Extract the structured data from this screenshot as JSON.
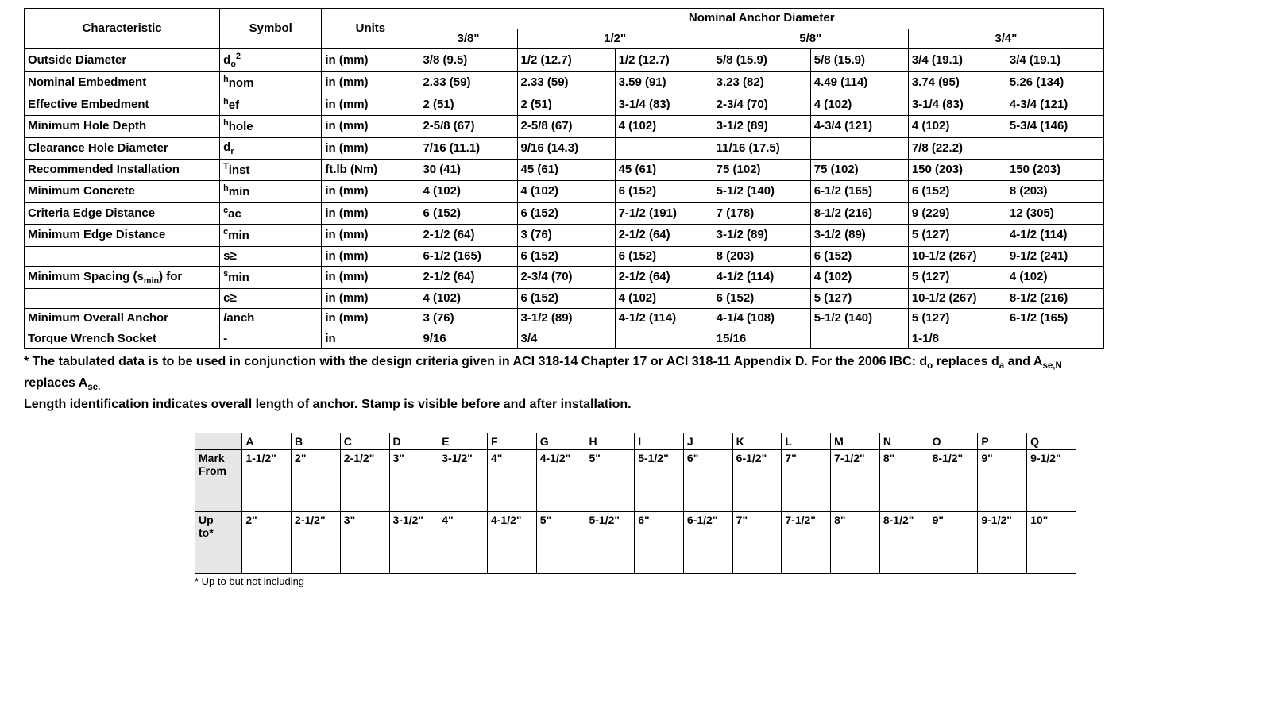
{
  "mainTable": {
    "header": {
      "characteristic": "Characteristic",
      "symbol": "Symbol",
      "units": "Units",
      "group": "Nominal Anchor Diameter",
      "d38": "3/8\"",
      "d12": "1/2\"",
      "d58": "5/8\"",
      "d34": "3/4\""
    },
    "rows": [
      {
        "char": "Outside Diameter",
        "sym": "d<sub>o</sub><sup>2</sup>",
        "units": "in (mm)",
        "v": [
          "3/8 (9.5)",
          "1/2 (12.7)",
          "1/2 (12.7)",
          "5/8 (15.9)",
          "5/8 (15.9)",
          "3/4 (19.1)",
          "3/4 (19.1)"
        ]
      },
      {
        "char": "Nominal Embedment",
        "sym": "<sup>h</sup>nom",
        "units": "in (mm)",
        "v": [
          "2.33 (59)",
          "2.33 (59)",
          "3.59 (91)",
          "3.23 (82)",
          "4.49 (114)",
          "3.74 (95)",
          "5.26 (134)"
        ]
      },
      {
        "char": "Effective Embedment",
        "sym": "<sup>h</sup>ef",
        "units": "in (mm)",
        "v": [
          "2 (51)",
          "2 (51)",
          "3-1/4 (83)",
          "2-3/4 (70)",
          "4 (102)",
          "3-1/4 (83)",
          "4-3/4 (121)"
        ]
      },
      {
        "char": "Minimum Hole Depth",
        "sym": "<sup>h</sup>hole",
        "units": "in (mm)",
        "v": [
          "2-5/8 (67)",
          "2-5/8 (67)",
          "4 (102)",
          "3-1/2 (89)",
          "4-3/4 (121)",
          "4 (102)",
          "5-3/4 (146)"
        ]
      },
      {
        "char": "Clearance Hole Diameter",
        "sym": "d<sub>r</sub>",
        "units": "in (mm)",
        "v": [
          "7/16 (11.1)",
          "9/16 (14.3)",
          "",
          "11/16 (17.5)",
          "",
          "7/8 (22.2)",
          ""
        ]
      },
      {
        "char": "Recommended Installation",
        "sym": "<sup>T</sup>inst",
        "units": "ft.lb (Nm)",
        "v": [
          "30 (41)",
          "45 (61)",
          "45 (61)",
          "75 (102)",
          "75 (102)",
          "150 (203)",
          "150 (203)"
        ]
      },
      {
        "char": "Minimum Concrete",
        "sym": "<sup>h</sup>min",
        "units": "in (mm)",
        "v": [
          "4 (102)",
          "4 (102)",
          "6 (152)",
          "5-1/2 (140)",
          "6-1/2 (165)",
          "6 (152)",
          "8 (203)"
        ]
      },
      {
        "char": "Criteria Edge Distance",
        "sym": "<sup>c</sup>ac",
        "units": "in (mm)",
        "v": [
          "6 (152)",
          "6 (152)",
          "7-1/2 (191)",
          "7 (178)",
          "8-1/2 (216)",
          "9  (229)",
          "12 (305)"
        ]
      },
      {
        "char": "Minimum Edge Distance",
        "sym": "<sup>c</sup>min",
        "units": "in (mm)",
        "v": [
          "2-1/2 (64)",
          "3 (76)",
          "2-1/2 (64)",
          "3-1/2 (89)",
          "3-1/2 (89)",
          "5 (127)",
          "4-1/2 (114)"
        ]
      },
      {
        "char": "",
        "sym": "s≥",
        "units": "in (mm)",
        "v": [
          "6-1/2 (165)",
          "6 (152)",
          "6 (152)",
          "8 (203)",
          "6 (152)",
          "10-1/2 (267)",
          "9-1/2 (241)"
        ]
      },
      {
        "char": "Minimum Spacing (s<sub>min</sub>) for",
        "sym": "<sup>s</sup>min",
        "units": "in (mm)",
        "v": [
          "2-1/2 (64)",
          "2-3/4 (70)",
          "2-1/2 (64)",
          "4-1/2 (114)",
          "4 (102)",
          "5 (127)",
          "4 (102)"
        ]
      },
      {
        "char": "",
        "sym": "c≥",
        "units": "in (mm)",
        "v": [
          "4 (102)",
          "6 (152)",
          "4 (102)",
          "6 (152)",
          "5 (127)",
          "10-1/2 (267)",
          "8-1/2 (216)"
        ]
      },
      {
        "char": "Minimum Overall Anchor",
        "sym": "<i>l</i>anch",
        "units": "in (mm)",
        "v": [
          "3 (76)",
          "3-1/2 (89)",
          "4-1/2 (114)",
          "4-1/4 (108)",
          "5-1/2 (140)",
          "5 (127)",
          "6-1/2 (165)"
        ]
      },
      {
        "char": "Torque Wrench Socket",
        "sym": "-",
        "units": "in",
        "v": [
          "9/16",
          "3/4",
          "",
          "15/16",
          "",
          "1-1/8",
          ""
        ]
      }
    ]
  },
  "footnote": "* The tabulated data is to be used in conjunction with the design criteria given in ACI 318-14 Chapter 17 or ACI 318-11 Appendix D. For the 2006 IBC: d<sub>o</sub> replaces d<sub>a</sub> and A<sub>se,N</sub> replaces A<sub>se.</sub><br>Length identification indicates overall length of anchor. Stamp is visible before and after installation.",
  "markTable": {
    "header": [
      "",
      "A",
      "B",
      "C",
      "D",
      "E",
      "F",
      "G",
      "H",
      "I",
      "J",
      "K",
      "L",
      "M",
      "N",
      "O",
      "P",
      "Q"
    ],
    "rows": [
      {
        "label": "Mark",
        "v": [
          "1-1/2\"",
          "2\"",
          "2-1/2\"",
          "3\"",
          "3-1/2\"",
          "4\"",
          "4-1/2\"",
          "5\"",
          "5-1/2\"",
          "6\"",
          "6-1/2\"",
          "7\"",
          "7-1/2\"",
          "8\"",
          "8-1/2\"",
          "9\"",
          "9-1/2\""
        ]
      },
      {
        "label": "From",
        "v": [
          "",
          "",
          "",
          "",
          "",
          "",
          "",
          "",
          "",
          "",
          "",
          "",
          "",
          "",
          "",
          "",
          ""
        ]
      },
      {
        "label": "Up to*",
        "v": [
          "2\"",
          "2-1/2\"",
          "3\"",
          "3-1/2\"",
          "4\"",
          "4-1/2\"",
          "5\"",
          "5-1/2\"",
          "6\"",
          "6-1/2\"",
          "7\"",
          "7-1/2\"",
          "8\"",
          "8-1/2\"",
          "9\"",
          "9-1/2\"",
          "10\""
        ]
      }
    ],
    "footnote": "* Up to but not including"
  }
}
